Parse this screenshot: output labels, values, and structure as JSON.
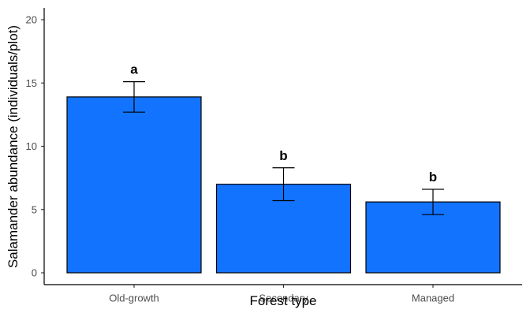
{
  "chart_data": {
    "type": "bar",
    "categories": [
      "Old-growth",
      "Secondary",
      "Managed"
    ],
    "values": [
      13.9,
      7.0,
      5.6
    ],
    "error_low": [
      12.7,
      5.7,
      4.6
    ],
    "error_high": [
      15.1,
      8.3,
      6.6
    ],
    "significance_labels": [
      "a",
      "b",
      "b"
    ],
    "xlabel": "Forest type",
    "ylabel": "Salamander abundance (individuals/plot)",
    "ylim": [
      0,
      21
    ],
    "yticks": [
      0,
      5,
      10,
      15,
      20
    ],
    "grid": false,
    "bar_color": "#1273FF",
    "bar_edge_color": "#000000"
  }
}
